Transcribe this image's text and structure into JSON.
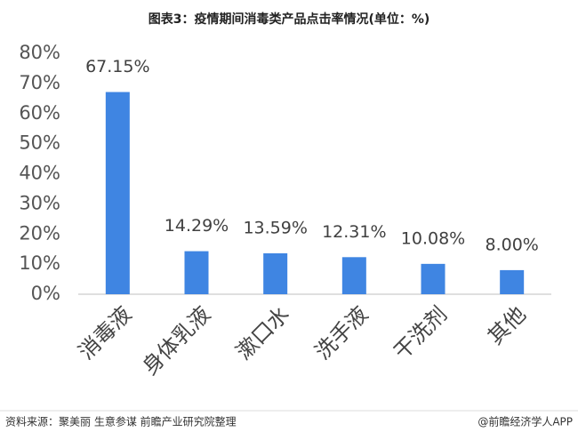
{
  "chart_data": {
    "type": "bar",
    "title": "图表3：疫情期间消毒类产品点击率情况(单位：%)",
    "categories": [
      "消毒液",
      "身体乳液",
      "漱口水",
      "洗手液",
      "干洗剂",
      "其他"
    ],
    "values": [
      67.15,
      14.29,
      13.59,
      12.31,
      10.08,
      8.0
    ],
    "value_labels": [
      "67.15%",
      "14.29%",
      "13.59%",
      "12.31%",
      "10.08%",
      "8.00%"
    ],
    "color": "#3f85e2",
    "ylim": [
      0,
      80
    ],
    "yticks": [
      {
        "value": 0,
        "label": "0%"
      },
      {
        "value": 10,
        "label": "10%"
      },
      {
        "value": 20,
        "label": "20%"
      },
      {
        "value": 30,
        "label": "30%"
      },
      {
        "value": 40,
        "label": "40%"
      },
      {
        "value": 50,
        "label": "50%"
      },
      {
        "value": 60,
        "label": "60%"
      },
      {
        "value": 70,
        "label": "70%"
      },
      {
        "value": 80,
        "label": "80%"
      }
    ],
    "grid": false
  },
  "source": "资料来源：聚美丽 生意参谋 前瞻产业研究院整理",
  "footer": "@前瞻经济学人APP"
}
